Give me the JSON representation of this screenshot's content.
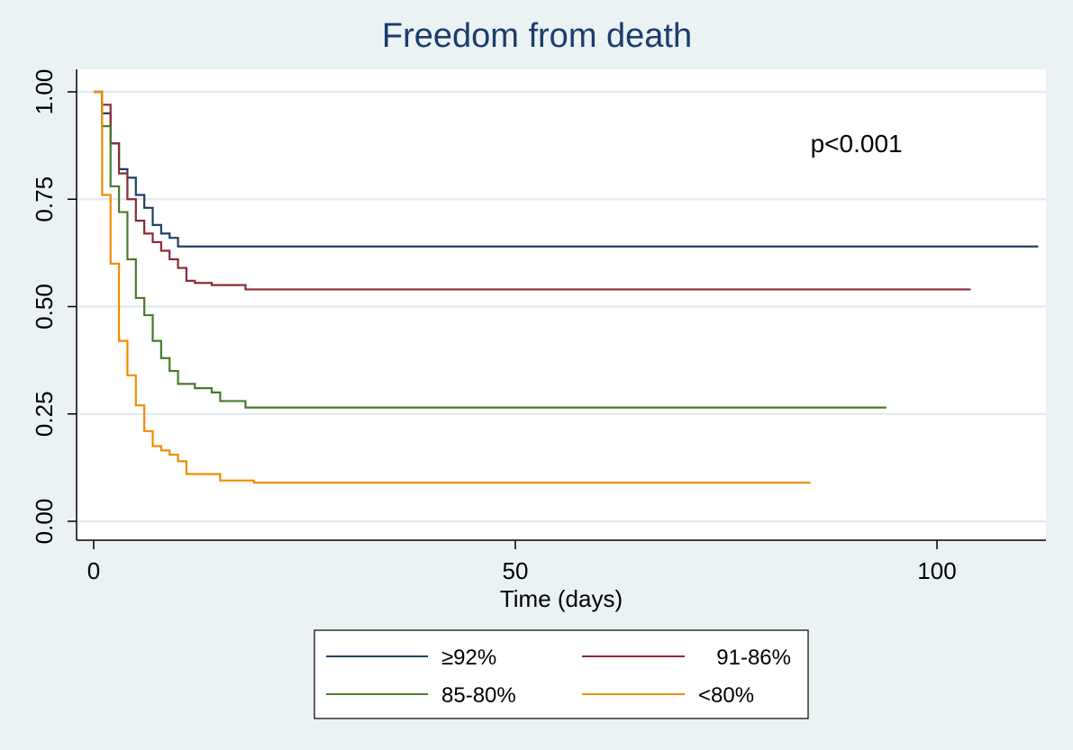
{
  "chart_data": {
    "type": "line",
    "title": "Freedom from death",
    "xlabel": "Time (days)",
    "ylabel": "",
    "xlim": [
      0,
      112
    ],
    "ylim": [
      0,
      1
    ],
    "x_ticks": [
      0,
      50,
      100
    ],
    "x_tick_labels": [
      "0",
      "50",
      "100"
    ],
    "y_ticks": [
      0,
      0.25,
      0.5,
      0.75,
      1
    ],
    "y_tick_labels": [
      "0.00",
      "0.25",
      "0.50",
      "0.75",
      "1.00"
    ],
    "grid": true,
    "legend_position": "bottom",
    "annotations": [
      {
        "text": "p<0.001",
        "x": 85,
        "y": 0.86
      }
    ],
    "series": [
      {
        "name": "≥92%",
        "color": "#1f3f66",
        "x": [
          0,
          1,
          2,
          3,
          4,
          5,
          6,
          7,
          8,
          9,
          10,
          112
        ],
        "y": [
          1.0,
          0.95,
          0.88,
          0.82,
          0.8,
          0.76,
          0.73,
          0.69,
          0.67,
          0.66,
          0.64,
          0.64
        ]
      },
      {
        "name": "91-86%",
        "color": "#8b2a35",
        "x": [
          0,
          1,
          2,
          3,
          4,
          5,
          6,
          7,
          8,
          9,
          10,
          11,
          12,
          14,
          18,
          104
        ],
        "y": [
          1.0,
          0.97,
          0.88,
          0.81,
          0.75,
          0.7,
          0.67,
          0.65,
          0.63,
          0.61,
          0.59,
          0.56,
          0.555,
          0.55,
          0.54,
          0.54
        ]
      },
      {
        "name": "85-80%",
        "color": "#4a7a2c",
        "x": [
          0,
          1,
          2,
          3,
          4,
          5,
          6,
          7,
          8,
          9,
          10,
          12,
          14,
          15,
          18,
          94
        ],
        "y": [
          1.0,
          0.92,
          0.78,
          0.72,
          0.61,
          0.52,
          0.48,
          0.42,
          0.38,
          0.35,
          0.32,
          0.31,
          0.3,
          0.28,
          0.265,
          0.265
        ]
      },
      {
        "name": "<80%",
        "color": "#f08c00",
        "x": [
          0,
          1,
          2,
          3,
          4,
          5,
          6,
          7,
          8,
          9,
          10,
          11,
          12,
          15,
          19,
          85
        ],
        "y": [
          1.0,
          0.76,
          0.6,
          0.42,
          0.34,
          0.27,
          0.21,
          0.175,
          0.165,
          0.155,
          0.14,
          0.11,
          0.11,
          0.095,
          0.09,
          0.09
        ]
      }
    ]
  }
}
